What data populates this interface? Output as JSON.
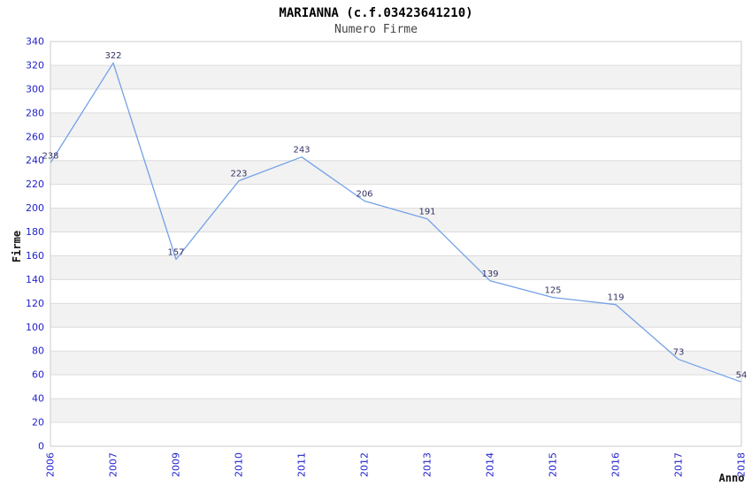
{
  "chart_data": {
    "type": "line",
    "title": "MARIANNA (c.f.03423641210)",
    "subtitle": "Numero Firme",
    "xlabel": "Anno",
    "ylabel": "Firme",
    "categories": [
      "2006",
      "2007",
      "2009",
      "2010",
      "2011",
      "2012",
      "2013",
      "2014",
      "2015",
      "2016",
      "2017",
      "2018"
    ],
    "values": [
      238,
      322,
      157,
      223,
      243,
      206,
      191,
      139,
      125,
      119,
      73,
      54
    ],
    "ylim": [
      0,
      340
    ],
    "ytick_step": 20,
    "grid": true,
    "legend_position": "none",
    "plot_bands_alternating": true,
    "colors": {
      "line": "#73a1e6",
      "band": "#f2f2f2",
      "grid": "#dcdcdc",
      "border": "#cccccc",
      "tick_label": "#2222cc",
      "data_label": "#333366"
    }
  }
}
